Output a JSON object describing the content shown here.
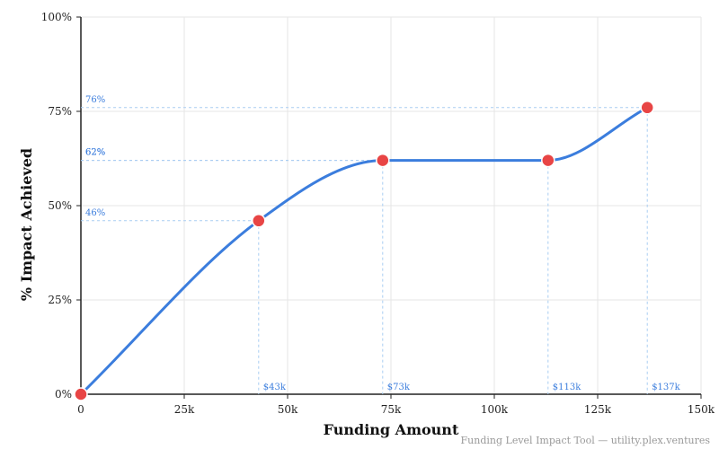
{
  "chart_data": {
    "type": "line",
    "x_label": "Funding Amount",
    "y_label": "% Impact Achieved",
    "footer": "Funding Level Impact Tool — utility.plex.ventures",
    "x": [
      0,
      43000,
      73000,
      113000,
      137000
    ],
    "series": [
      {
        "name": "Impact",
        "color": "#3b7ddd",
        "point_color": "#e84545",
        "values": [
          0,
          46,
          62,
          62,
          76
        ],
        "value_labels": [
          null,
          "46%",
          "62%",
          "62%",
          "76%"
        ],
        "x_value_labels": [
          null,
          "$43k",
          "$73k",
          "$113k",
          "$137k"
        ]
      }
    ],
    "xlim": [
      0,
      150000
    ],
    "xticks": [
      0,
      {
        "value": 25000,
        "label": "25k"
      },
      {
        "value": 50000,
        "label": "50k"
      },
      {
        "value": 75000,
        "label": "75k"
      },
      {
        "value": 100000,
        "label": "100k"
      },
      {
        "value": 125000,
        "label": "125k"
      },
      {
        "value": 150000,
        "label": "150k"
      }
    ],
    "ylim": [
      0,
      100
    ],
    "yticks": [
      {
        "value": 0,
        "label": "0%"
      },
      {
        "value": 25,
        "label": "25%"
      },
      {
        "value": 50,
        "label": "50%"
      },
      {
        "value": 75,
        "label": "75%"
      },
      {
        "value": 100,
        "label": "100%"
      }
    ],
    "grid": true
  }
}
